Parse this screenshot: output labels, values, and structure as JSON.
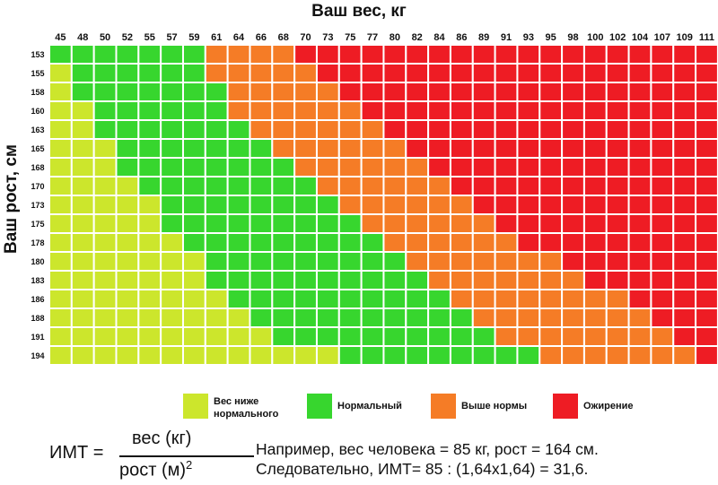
{
  "chart_data": {
    "type": "heatmap",
    "xlabel": "Ваш вес, кг",
    "ylabel": "Ваш рост, см",
    "x": [
      45,
      48,
      50,
      52,
      55,
      57,
      59,
      61,
      64,
      66,
      68,
      70,
      73,
      75,
      77,
      80,
      82,
      84,
      86,
      89,
      91,
      93,
      95,
      98,
      100,
      102,
      104,
      107,
      109,
      111
    ],
    "y": [
      153,
      155,
      158,
      160,
      163,
      165,
      168,
      170,
      173,
      175,
      178,
      180,
      183,
      186,
      188,
      191,
      194
    ],
    "categories": [
      {
        "key": "under",
        "label_lines": [
          "Вес ниже",
          "нормального"
        ],
        "color": "#CCE62C"
      },
      {
        "key": "normal",
        "label_lines": [
          "Нормальный"
        ],
        "color": "#37D62E"
      },
      {
        "key": "over",
        "label_lines": [
          "Выше нормы"
        ],
        "color": "#F57C26"
      },
      {
        "key": "obese",
        "label_lines": [
          "Ожирение"
        ],
        "color": "#EE1C24"
      }
    ],
    "rows": [
      {
        "height": 153,
        "normal_from": 45,
        "over_from": 61,
        "obese_from": 70
      },
      {
        "height": 155,
        "normal_from": 48,
        "over_from": 61,
        "obese_from": 73
      },
      {
        "height": 158,
        "normal_from": 48,
        "over_from": 64,
        "obese_from": 75
      },
      {
        "height": 160,
        "normal_from": 50,
        "over_from": 64,
        "obese_from": 77
      },
      {
        "height": 163,
        "normal_from": 50,
        "over_from": 66,
        "obese_from": 80
      },
      {
        "height": 165,
        "normal_from": 52,
        "over_from": 68,
        "obese_from": 82
      },
      {
        "height": 168,
        "normal_from": 52,
        "over_from": 70,
        "obese_from": 84
      },
      {
        "height": 170,
        "normal_from": 55,
        "over_from": 73,
        "obese_from": 86
      },
      {
        "height": 173,
        "normal_from": 57,
        "over_from": 75,
        "obese_from": 89
      },
      {
        "height": 175,
        "normal_from": 57,
        "over_from": 77,
        "obese_from": 91
      },
      {
        "height": 178,
        "normal_from": 59,
        "over_from": 80,
        "obese_from": 93
      },
      {
        "height": 180,
        "normal_from": 61,
        "over_from": 82,
        "obese_from": 98
      },
      {
        "height": 183,
        "normal_from": 61,
        "over_from": 84,
        "obese_from": 100
      },
      {
        "height": 186,
        "normal_from": 64,
        "over_from": 86,
        "obese_from": 104
      },
      {
        "height": 188,
        "normal_from": 66,
        "over_from": 89,
        "obese_from": 107
      },
      {
        "height": 191,
        "normal_from": 68,
        "over_from": 91,
        "obese_from": 109
      },
      {
        "height": 194,
        "normal_from": 75,
        "over_from": 95,
        "obese_from": 111
      }
    ]
  },
  "formula": {
    "lhs": "ИМТ =",
    "numerator": "вес (кг)",
    "denominator": "рост (м)",
    "exponent": "2"
  },
  "example": {
    "line1": "Например, вес человека = 85 кг, рост = 164 см.",
    "line2": "Следовательно, ИМТ= 85 : (1,64х1,64) = 31,6."
  }
}
